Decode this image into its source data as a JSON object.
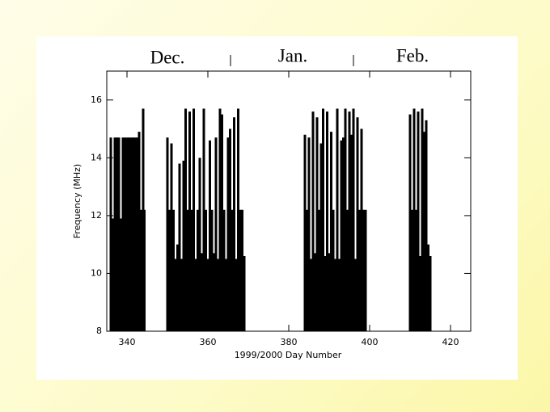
{
  "chart_data": {
    "type": "stem",
    "months": [
      "Dec.",
      "Jan.",
      "Feb."
    ],
    "xlabel": "1999/2000 Day Number",
    "ylabel": "Frequency (MHz)",
    "color": "#000000",
    "xlim": [
      335,
      425
    ],
    "xticks": [
      340,
      360,
      380,
      400,
      420
    ],
    "ylim": [
      8,
      17
    ],
    "yticks": [
      8,
      10,
      12,
      14,
      16
    ],
    "x": [
      336,
      336.5,
      337,
      337.5,
      338,
      338.5,
      339,
      339.5,
      340,
      340.5,
      341,
      341.5,
      342,
      342.5,
      343,
      343.5,
      344,
      344.3,
      350,
      350.5,
      351,
      351.5,
      352,
      352.5,
      353,
      353.5,
      354,
      354.5,
      355,
      355.5,
      356,
      356.5,
      357,
      357.5,
      358,
      358.5,
      359,
      359.5,
      360,
      360.5,
      361,
      361.5,
      362,
      362.5,
      363,
      363.5,
      364,
      364.5,
      365,
      365.5,
      366,
      366.5,
      367,
      367.5,
      368,
      368.5,
      369,
      384,
      384.5,
      385,
      385.5,
      386,
      386.5,
      387,
      387.5,
      388,
      388.5,
      389,
      389.5,
      390,
      390.5,
      391,
      391.5,
      392,
      392.5,
      393,
      393.5,
      394,
      394.5,
      395,
      395.5,
      396,
      396.5,
      397,
      397.5,
      398,
      398.5,
      399,
      410,
      410.5,
      411,
      411.5,
      412,
      412.5,
      413,
      413.5,
      414,
      414.5,
      415
    ],
    "values": [
      14.7,
      11.9,
      14.7,
      14.7,
      14.7,
      11.9,
      14.7,
      14.7,
      14.7,
      14.7,
      14.7,
      14.7,
      14.7,
      14.7,
      14.9,
      12.2,
      15.7,
      12.2,
      14.7,
      12.2,
      14.5,
      12.2,
      10.5,
      11.0,
      13.8,
      10.5,
      13.9,
      15.7,
      12.2,
      15.6,
      12.2,
      15.7,
      10.5,
      12.2,
      14.0,
      10.7,
      15.7,
      12.2,
      10.5,
      14.6,
      12.2,
      10.7,
      14.7,
      10.5,
      15.7,
      15.5,
      12.2,
      10.5,
      14.7,
      15.0,
      12.2,
      15.4,
      10.5,
      15.7,
      12.2,
      12.2,
      10.6,
      14.8,
      12.2,
      14.7,
      10.5,
      15.6,
      10.7,
      15.4,
      12.2,
      14.5,
      15.7,
      10.6,
      15.6,
      10.7,
      14.9,
      12.2,
      10.5,
      15.7,
      10.5,
      14.6,
      14.7,
      15.7,
      12.2,
      15.6,
      14.8,
      15.7,
      10.5,
      15.4,
      12.2,
      15.0,
      12.2,
      12.2,
      15.5,
      12.2,
      15.7,
      12.2,
      15.6,
      10.6,
      15.7,
      14.9,
      15.3,
      11.0,
      10.6
    ]
  }
}
